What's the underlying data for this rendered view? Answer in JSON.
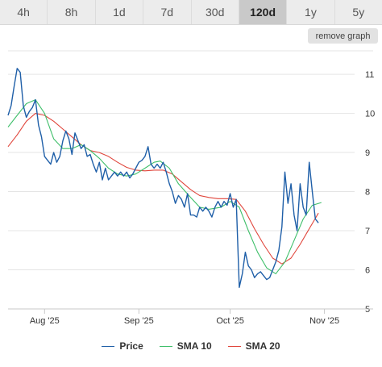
{
  "range_tabs": [
    "4h",
    "8h",
    "1d",
    "7d",
    "30d",
    "120d",
    "1y",
    "5y"
  ],
  "active_range": "120d",
  "remove_graph_label": "remove graph",
  "colors": {
    "price": "#1f5fa8",
    "sma10": "#3fbf6a",
    "sma20": "#e0463c",
    "grid": "#e5e5e5",
    "active_tab": "#c9c9c9"
  },
  "chart_data": {
    "type": "line",
    "y_axis_side": "right",
    "ylim": [
      5,
      11.6
    ],
    "y_ticks": [
      5,
      6,
      7,
      8,
      9,
      10,
      11
    ],
    "y_tick_labels": [
      "5",
      "6",
      "7",
      "8",
      "9",
      "10",
      "11"
    ],
    "xlim": [
      0,
      120
    ],
    "x_ticks": [
      {
        "x": 12,
        "label": "Aug '25"
      },
      {
        "x": 43,
        "label": "Sep '25"
      },
      {
        "x": 73,
        "label": "Oct '25"
      },
      {
        "x": 104,
        "label": "Nov '25"
      }
    ],
    "grid": true,
    "legend_position": "bottom",
    "series": [
      {
        "name": "Price",
        "color_key": "price",
        "points": [
          [
            0,
            9.95
          ],
          [
            1,
            10.2
          ],
          [
            2,
            10.7
          ],
          [
            3,
            11.15
          ],
          [
            4,
            11.05
          ],
          [
            5,
            10.2
          ],
          [
            6,
            9.9
          ],
          [
            7,
            10.05
          ],
          [
            8,
            10.15
          ],
          [
            9,
            10.35
          ],
          [
            10,
            9.7
          ],
          [
            11,
            9.4
          ],
          [
            12,
            8.9
          ],
          [
            13,
            8.8
          ],
          [
            14,
            8.7
          ],
          [
            15,
            9.0
          ],
          [
            16,
            8.75
          ],
          [
            17,
            8.9
          ],
          [
            18,
            9.3
          ],
          [
            19,
            9.55
          ],
          [
            20,
            9.35
          ],
          [
            21,
            8.95
          ],
          [
            22,
            9.5
          ],
          [
            23,
            9.3
          ],
          [
            24,
            9.1
          ],
          [
            25,
            9.2
          ],
          [
            26,
            8.9
          ],
          [
            27,
            8.95
          ],
          [
            28,
            8.7
          ],
          [
            29,
            8.5
          ],
          [
            30,
            8.75
          ],
          [
            31,
            8.3
          ],
          [
            32,
            8.6
          ],
          [
            33,
            8.3
          ],
          [
            34,
            8.4
          ],
          [
            35,
            8.5
          ],
          [
            36,
            8.4
          ],
          [
            37,
            8.5
          ],
          [
            38,
            8.4
          ],
          [
            39,
            8.5
          ],
          [
            40,
            8.35
          ],
          [
            41,
            8.45
          ],
          [
            42,
            8.6
          ],
          [
            43,
            8.75
          ],
          [
            44,
            8.8
          ],
          [
            45,
            8.9
          ],
          [
            46,
            9.15
          ],
          [
            47,
            8.7
          ],
          [
            48,
            8.6
          ],
          [
            49,
            8.7
          ],
          [
            50,
            8.6
          ],
          [
            51,
            8.75
          ],
          [
            52,
            8.5
          ],
          [
            53,
            8.2
          ],
          [
            54,
            8.0
          ],
          [
            55,
            7.7
          ],
          [
            56,
            7.9
          ],
          [
            57,
            7.8
          ],
          [
            58,
            7.6
          ],
          [
            59,
            7.95
          ],
          [
            60,
            7.4
          ],
          [
            61,
            7.4
          ],
          [
            62,
            7.35
          ],
          [
            63,
            7.6
          ],
          [
            64,
            7.5
          ],
          [
            65,
            7.6
          ],
          [
            66,
            7.5
          ],
          [
            67,
            7.35
          ],
          [
            68,
            7.6
          ],
          [
            69,
            7.75
          ],
          [
            70,
            7.6
          ],
          [
            71,
            7.75
          ],
          [
            72,
            7.65
          ],
          [
            73,
            7.95
          ],
          [
            74,
            7.6
          ],
          [
            75,
            7.8
          ],
          [
            76,
            5.55
          ],
          [
            77,
            5.9
          ],
          [
            78,
            6.45
          ],
          [
            79,
            6.1
          ],
          [
            80,
            6.0
          ],
          [
            81,
            5.8
          ],
          [
            82,
            5.9
          ],
          [
            83,
            5.95
          ],
          [
            84,
            5.85
          ],
          [
            85,
            5.75
          ],
          [
            86,
            5.8
          ],
          [
            87,
            6.0
          ],
          [
            88,
            6.2
          ],
          [
            89,
            6.5
          ],
          [
            90,
            7.1
          ],
          [
            91,
            8.5
          ],
          [
            92,
            7.7
          ],
          [
            93,
            8.2
          ],
          [
            94,
            7.4
          ],
          [
            95,
            7.0
          ],
          [
            96,
            8.2
          ],
          [
            97,
            7.6
          ],
          [
            98,
            7.4
          ],
          [
            99,
            8.75
          ],
          [
            100,
            8.0
          ],
          [
            101,
            7.3
          ],
          [
            102,
            7.2
          ]
        ]
      },
      {
        "name": "SMA 10",
        "color_key": "sma10",
        "points": [
          [
            0,
            9.65
          ],
          [
            3,
            9.95
          ],
          [
            6,
            10.25
          ],
          [
            9,
            10.35
          ],
          [
            12,
            10.0
          ],
          [
            15,
            9.35
          ],
          [
            18,
            9.1
          ],
          [
            21,
            9.1
          ],
          [
            24,
            9.2
          ],
          [
            27,
            9.05
          ],
          [
            30,
            8.85
          ],
          [
            33,
            8.6
          ],
          [
            36,
            8.45
          ],
          [
            39,
            8.4
          ],
          [
            42,
            8.45
          ],
          [
            45,
            8.6
          ],
          [
            48,
            8.75
          ],
          [
            50,
            8.78
          ],
          [
            53,
            8.6
          ],
          [
            56,
            8.2
          ],
          [
            60,
            7.85
          ],
          [
            63,
            7.6
          ],
          [
            66,
            7.55
          ],
          [
            70,
            7.6
          ],
          [
            73,
            7.75
          ],
          [
            76,
            7.6
          ],
          [
            79,
            7.0
          ],
          [
            82,
            6.45
          ],
          [
            85,
            6.05
          ],
          [
            88,
            5.9
          ],
          [
            91,
            6.2
          ],
          [
            94,
            6.75
          ],
          [
            97,
            7.3
          ],
          [
            100,
            7.65
          ],
          [
            103,
            7.72
          ]
        ]
      },
      {
        "name": "SMA 20",
        "color_key": "sma20",
        "points": [
          [
            0,
            9.15
          ],
          [
            3,
            9.45
          ],
          [
            6,
            9.8
          ],
          [
            9,
            10.0
          ],
          [
            12,
            9.95
          ],
          [
            15,
            9.8
          ],
          [
            18,
            9.6
          ],
          [
            21,
            9.4
          ],
          [
            24,
            9.2
          ],
          [
            27,
            9.05
          ],
          [
            30,
            9.0
          ],
          [
            33,
            8.9
          ],
          [
            36,
            8.75
          ],
          [
            39,
            8.62
          ],
          [
            42,
            8.55
          ],
          [
            45,
            8.53
          ],
          [
            48,
            8.55
          ],
          [
            51,
            8.55
          ],
          [
            54,
            8.45
          ],
          [
            57,
            8.25
          ],
          [
            60,
            8.05
          ],
          [
            63,
            7.9
          ],
          [
            66,
            7.85
          ],
          [
            69,
            7.82
          ],
          [
            72,
            7.82
          ],
          [
            75,
            7.8
          ],
          [
            78,
            7.5
          ],
          [
            81,
            7.05
          ],
          [
            84,
            6.65
          ],
          [
            87,
            6.3
          ],
          [
            90,
            6.15
          ],
          [
            93,
            6.3
          ],
          [
            96,
            6.65
          ],
          [
            99,
            7.05
          ],
          [
            102,
            7.45
          ]
        ]
      }
    ]
  }
}
